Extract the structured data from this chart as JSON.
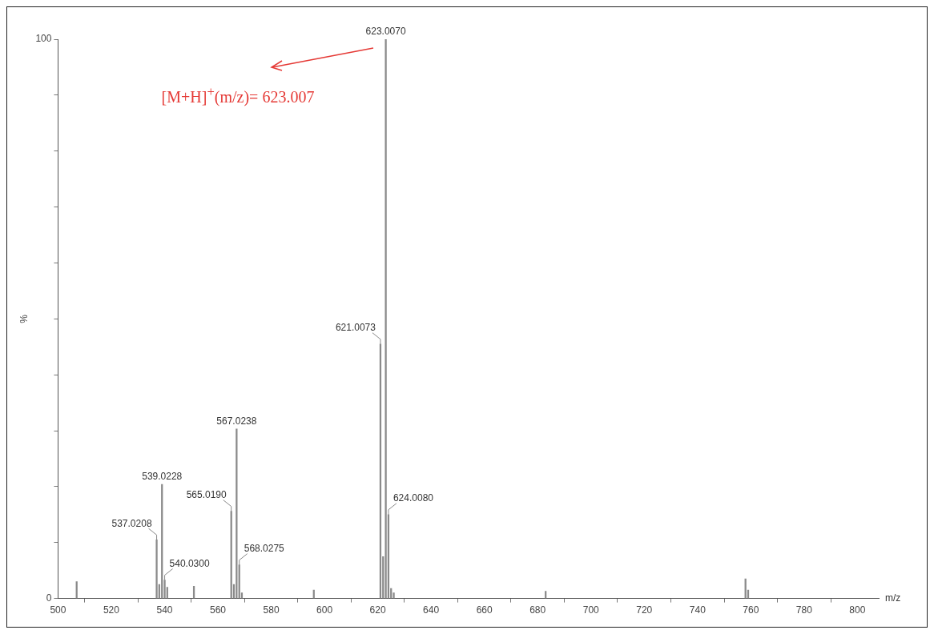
{
  "chart_data": {
    "type": "bar",
    "xlabel": "m/z",
    "ylabel": "%",
    "x": [
      507,
      537.0208,
      538,
      539.0228,
      540.03,
      541,
      551,
      565.019,
      566,
      567.0238,
      568.0275,
      569,
      596,
      621.0073,
      622,
      623.007,
      624.008,
      625,
      626,
      683,
      758,
      759
    ],
    "values": [
      3,
      10.5,
      2.5,
      20.4,
      3.3,
      2,
      2.2,
      15.6,
      2.5,
      30.3,
      6,
      1,
      1.5,
      45.5,
      7.5,
      100,
      15,
      1.8,
      1,
      1.3,
      3.5,
      1.5
    ],
    "color": "#8a8a8a",
    "xlim": [
      500,
      808
    ],
    "xticks": [
      500,
      520,
      540,
      560,
      580,
      600,
      620,
      640,
      660,
      680,
      700,
      720,
      740,
      760,
      780,
      800
    ],
    "ylim": [
      0,
      100
    ],
    "yticks": [
      0,
      {
        "value": 10,
        "label": null
      },
      {
        "value": 20,
        "label": null
      },
      {
        "value": 30,
        "label": null
      },
      {
        "value": 40,
        "label": null
      },
      {
        "value": 50,
        "label": null
      },
      {
        "value": 60,
        "label": null
      },
      {
        "value": 70,
        "label": null
      },
      {
        "value": 80,
        "label": null
      },
      {
        "value": 90,
        "label": null
      },
      100
    ],
    "grid": false,
    "legend": false,
    "annotations": [
      {
        "text": "623.0070",
        "x": 623.007,
        "y": 100
      },
      {
        "text": "621.0073",
        "x": 621.0073,
        "y": 45.5
      },
      {
        "text": "567.0238",
        "x": 567.0238,
        "y": 30.3
      },
      {
        "text": "539.0228",
        "x": 539.0228,
        "y": 20.4
      },
      {
        "text": "565.0190",
        "x": 565.019,
        "y": 15.6
      },
      {
        "text": "624.0080",
        "x": 624.008,
        "y": 15
      },
      {
        "text": "537.0208",
        "x": 537.0208,
        "y": 10.5
      },
      {
        "text": "568.0275",
        "x": 568.0275,
        "y": 6
      },
      {
        "text": "540.0300",
        "x": 540.03,
        "y": 3.3
      },
      "[M+H]$^{+}$(m/z)= 623.007"
    ]
  }
}
